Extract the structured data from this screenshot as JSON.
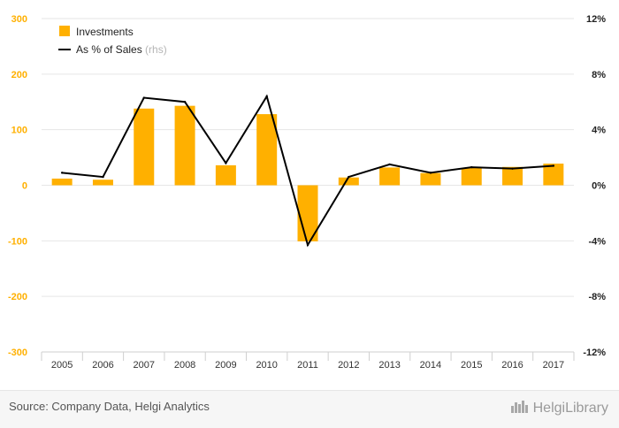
{
  "chart_data": {
    "type": "bar",
    "categories": [
      "2005",
      "2006",
      "2007",
      "2008",
      "2009",
      "2010",
      "2011",
      "2012",
      "2013",
      "2014",
      "2015",
      "2016",
      "2017"
    ],
    "series": [
      {
        "name": "Investments",
        "type": "bar",
        "axis": "left",
        "color": "#FFB000",
        "values": [
          12,
          10,
          138,
          143,
          36,
          128,
          -101,
          14,
          32,
          22,
          31,
          33,
          39
        ]
      },
      {
        "name": "As % of Sales",
        "name_suffix": "(rhs)",
        "type": "line",
        "axis": "right",
        "color": "#000000",
        "values": [
          0.9,
          0.6,
          6.3,
          6.0,
          1.6,
          6.4,
          -4.3,
          0.6,
          1.5,
          0.9,
          1.3,
          1.2,
          1.4
        ]
      }
    ],
    "y_left": {
      "ticks": [
        "300",
        "200",
        "100",
        "0",
        "-100",
        "-200",
        "-300"
      ],
      "lim": [
        -300,
        300
      ],
      "tick_color": "#FFB000"
    },
    "y_right": {
      "ticks": [
        "12%",
        "8%",
        "4%",
        "0%",
        "-4%",
        "-8%",
        "-12%"
      ],
      "lim": [
        -12,
        12
      ]
    },
    "grid": true,
    "legend_position": "top-left"
  },
  "footer": {
    "source": "Source: Company Data, Helgi Analytics",
    "brand": "HelgiLibrary"
  },
  "icons": {
    "brand": "helgi-library-logo-icon"
  }
}
